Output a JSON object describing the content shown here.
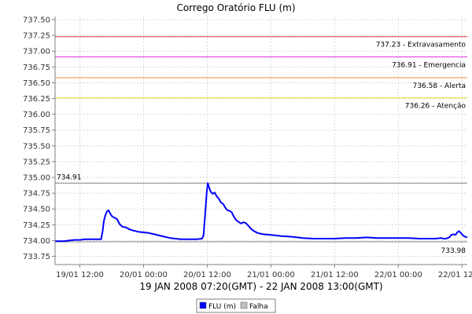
{
  "chart_data": {
    "type": "line",
    "title": "Corrego Oratório FLU (m)",
    "xlabel": "19 JAN 2008 07:20(GMT) - 22 JAN 2008 13:00(GMT)",
    "ylabel": "",
    "x_axis": {
      "unit": "hours_since_19_JAN_2008_00:00_GMT",
      "range": [
        7.33,
        85.0
      ],
      "ticks": [
        {
          "x": 12,
          "label": "19/01 12:00"
        },
        {
          "x": 24,
          "label": "20/01 00:00"
        },
        {
          "x": 36,
          "label": "20/01 12:00"
        },
        {
          "x": 48,
          "label": "21/01 00:00"
        },
        {
          "x": 60,
          "label": "21/01 12:00"
        },
        {
          "x": 72,
          "label": "22/01 00:00"
        },
        {
          "x": 84,
          "label": "22/01 12:00"
        }
      ]
    },
    "y_axis": {
      "range": [
        733.62,
        737.55
      ],
      "ticks": [
        "733.75",
        "734.00",
        "734.25",
        "734.50",
        "734.75",
        "735.00",
        "735.25",
        "735.50",
        "735.75",
        "736.00",
        "736.25",
        "736.50",
        "736.75",
        "737.00",
        "737.25",
        "737.50"
      ]
    },
    "grid": true,
    "legend_position": "bottom",
    "legend": [
      {
        "name": "FLU (m)",
        "color": "#0000ff"
      },
      {
        "name": "Falha",
        "color": "#c0c0c0"
      }
    ],
    "thresholds": [
      {
        "value": 737.23,
        "label": "737.23 - Extravasamento",
        "color": "#dd3333"
      },
      {
        "value": 736.91,
        "label": "736.91 - Emergencia",
        "color": "#dd33dd"
      },
      {
        "value": 736.58,
        "label": "736.58 - Alerta",
        "color": "#ee8833"
      },
      {
        "value": 736.26,
        "label": "736.26 - Atenção",
        "color": "#dddd33"
      }
    ],
    "markers": [
      {
        "value": 734.91,
        "label": "734.91",
        "position": "left",
        "color": "#808080"
      },
      {
        "value": 733.98,
        "label": "733.98",
        "position": "right",
        "color": "#808080"
      }
    ],
    "series": [
      {
        "name": "FLU (m)",
        "color": "#0000ff",
        "points": [
          [
            7.33,
            733.99
          ],
          [
            9,
            733.99
          ],
          [
            10,
            734.0
          ],
          [
            11,
            734.01
          ],
          [
            12,
            734.01
          ],
          [
            13,
            734.02
          ],
          [
            14,
            734.02
          ],
          [
            15,
            734.02
          ],
          [
            16,
            734.02
          ],
          [
            16.3,
            734.15
          ],
          [
            16.5,
            734.3
          ],
          [
            16.8,
            734.4
          ],
          [
            17.1,
            734.46
          ],
          [
            17.4,
            734.48
          ],
          [
            17.7,
            734.43
          ],
          [
            18.1,
            734.38
          ],
          [
            18.6,
            734.36
          ],
          [
            19.0,
            734.34
          ],
          [
            19.5,
            734.26
          ],
          [
            20.0,
            734.22
          ],
          [
            20.7,
            734.21
          ],
          [
            21.3,
            734.18
          ],
          [
            22,
            734.16
          ],
          [
            23,
            734.14
          ],
          [
            24,
            734.13
          ],
          [
            25,
            734.12
          ],
          [
            26,
            734.1
          ],
          [
            27,
            734.08
          ],
          [
            28,
            734.06
          ],
          [
            29,
            734.04
          ],
          [
            30,
            734.03
          ],
          [
            31,
            734.02
          ],
          [
            32,
            734.02
          ],
          [
            33,
            734.02
          ],
          [
            34,
            734.02
          ],
          [
            35,
            734.03
          ],
          [
            35.3,
            734.08
          ],
          [
            35.6,
            734.4
          ],
          [
            35.9,
            734.75
          ],
          [
            36.1,
            734.91
          ],
          [
            36.3,
            734.86
          ],
          [
            36.6,
            734.78
          ],
          [
            37.0,
            734.74
          ],
          [
            37.4,
            734.76
          ],
          [
            37.8,
            734.7
          ],
          [
            38.2,
            734.66
          ],
          [
            38.6,
            734.6
          ],
          [
            39.0,
            734.58
          ],
          [
            39.4,
            734.52
          ],
          [
            39.8,
            734.48
          ],
          [
            40.2,
            734.47
          ],
          [
            40.6,
            734.45
          ],
          [
            41.0,
            734.38
          ],
          [
            41.5,
            734.32
          ],
          [
            42.0,
            734.29
          ],
          [
            42.4,
            734.27
          ],
          [
            42.8,
            734.29
          ],
          [
            43.2,
            734.28
          ],
          [
            43.7,
            734.24
          ],
          [
            44.2,
            734.19
          ],
          [
            44.8,
            734.15
          ],
          [
            45.5,
            734.12
          ],
          [
            46.5,
            734.1
          ],
          [
            48,
            734.09
          ],
          [
            50,
            734.07
          ],
          [
            52,
            734.06
          ],
          [
            54,
            734.04
          ],
          [
            56,
            734.03
          ],
          [
            58,
            734.03
          ],
          [
            60,
            734.03
          ],
          [
            62,
            734.04
          ],
          [
            64,
            734.04
          ],
          [
            66,
            734.05
          ],
          [
            68,
            734.04
          ],
          [
            70,
            734.04
          ],
          [
            72,
            734.04
          ],
          [
            74,
            734.04
          ],
          [
            76,
            734.03
          ],
          [
            78,
            734.03
          ],
          [
            79,
            734.03
          ],
          [
            80,
            734.04
          ],
          [
            80.5,
            734.03
          ],
          [
            81,
            734.03
          ],
          [
            81.6,
            734.05
          ],
          [
            82.0,
            734.09
          ],
          [
            82.4,
            734.1
          ],
          [
            82.8,
            734.09
          ],
          [
            83.1,
            734.13
          ],
          [
            83.4,
            734.15
          ],
          [
            83.8,
            734.12
          ],
          [
            84.2,
            734.08
          ],
          [
            84.6,
            734.06
          ],
          [
            85,
            734.05
          ]
        ]
      }
    ]
  }
}
